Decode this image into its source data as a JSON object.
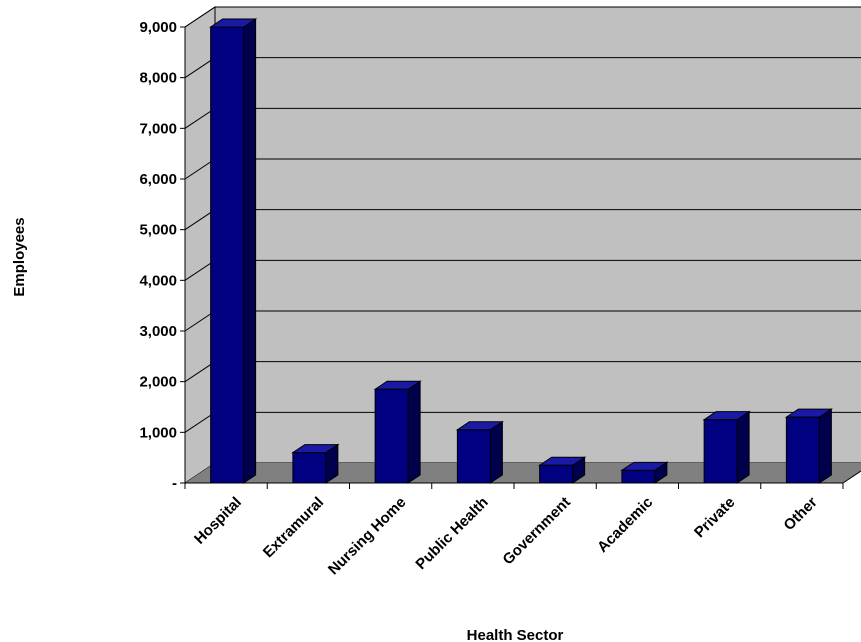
{
  "chart_data": {
    "type": "bar",
    "categories": [
      "Hospital",
      "Extramural",
      "Nursing Home",
      "Public Health",
      "Government",
      "Academic",
      "Private",
      "Other"
    ],
    "values": [
      9000,
      600,
      1850,
      1050,
      350,
      250,
      1250,
      1300
    ],
    "xlabel": "Health Sector",
    "ylabel": "Employees",
    "ylim": [
      0,
      9000
    ],
    "yticks": [
      "-",
      "1,000",
      "2,000",
      "3,000",
      "4,000",
      "5,000",
      "6,000",
      "7,000",
      "8,000",
      "9,000"
    ],
    "grid": true,
    "legend": "none",
    "style": "3d",
    "colors": {
      "bar_front": "#000080",
      "bar_side": "#00004d",
      "bar_top": "#1a1aa6",
      "wall": "#c0c0c0",
      "floor": "#808080",
      "gridline": "#000000"
    }
  }
}
